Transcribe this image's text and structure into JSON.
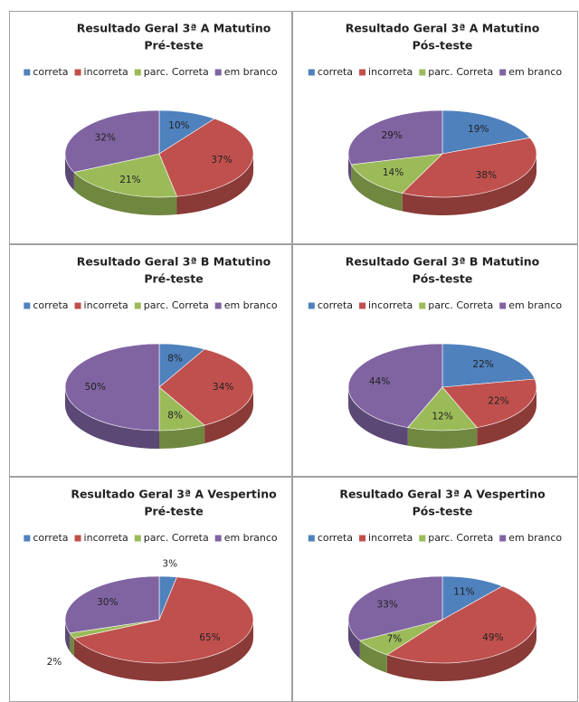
{
  "chart_data": [
    {
      "type": "pie",
      "title": "Resultado Geral 3ª A Matutino",
      "subtitle": "Pré-teste",
      "categories": [
        "correta",
        "incorreta",
        "parc. Correta",
        "em branco"
      ],
      "colors": [
        "#4f81bd",
        "#c0504d",
        "#9bbb59",
        "#8064a2"
      ],
      "values": [
        10,
        37,
        21,
        32
      ],
      "value_labels": [
        "10%",
        "37%",
        "21%",
        "32%"
      ],
      "legend": "top"
    },
    {
      "type": "pie",
      "title": "Resultado Geral 3ª A Matutino",
      "subtitle": "Pós-teste",
      "categories": [
        "correta",
        "incorreta",
        "parc. Correta",
        "em branco"
      ],
      "colors": [
        "#4f81bd",
        "#c0504d",
        "#9bbb59",
        "#8064a2"
      ],
      "values": [
        19,
        38,
        14,
        29
      ],
      "value_labels": [
        "19%",
        "38%",
        "14%",
        "29%"
      ],
      "legend": "top"
    },
    {
      "type": "pie",
      "title": "Resultado Geral 3ª B Matutino",
      "subtitle": "Pré-teste",
      "categories": [
        "correta",
        "incorreta",
        "parc. Correta",
        "em branco"
      ],
      "colors": [
        "#4f81bd",
        "#c0504d",
        "#9bbb59",
        "#8064a2"
      ],
      "values": [
        8,
        34,
        8,
        50
      ],
      "value_labels": [
        "8%",
        "34%",
        "8%",
        "50%"
      ],
      "legend": "top"
    },
    {
      "type": "pie",
      "title": "Resultado Geral 3ª B Matutino",
      "subtitle": "Pós-teste",
      "categories": [
        "correta",
        "incorreta",
        "parc. Correta",
        "em branco"
      ],
      "colors": [
        "#4f81bd",
        "#c0504d",
        "#9bbb59",
        "#8064a2"
      ],
      "values": [
        22,
        22,
        12,
        44
      ],
      "value_labels": [
        "22%",
        "22%",
        "12%",
        "44%"
      ],
      "legend": "top"
    },
    {
      "type": "pie",
      "title": "Resultado Geral 3ª A Vespertino",
      "subtitle": "Pré-teste",
      "categories": [
        "correta",
        "incorreta",
        "parc. Correta",
        "em branco"
      ],
      "colors": [
        "#4f81bd",
        "#c0504d",
        "#9bbb59",
        "#8064a2"
      ],
      "values": [
        3,
        65,
        2,
        30
      ],
      "value_labels": [
        "3%",
        "65%",
        "2%",
        "30%"
      ],
      "legend": "top"
    },
    {
      "type": "pie",
      "title": "Resultado Geral 3ª A Vespertino",
      "subtitle": "Pós-teste",
      "categories": [
        "correta",
        "incorreta",
        "parc. Correta",
        "em branco"
      ],
      "colors": [
        "#4f81bd",
        "#c0504d",
        "#9bbb59",
        "#8064a2"
      ],
      "values": [
        11,
        49,
        7,
        33
      ],
      "value_labels": [
        "11%",
        "49%",
        "7%",
        "33%"
      ],
      "legend": "top"
    }
  ]
}
